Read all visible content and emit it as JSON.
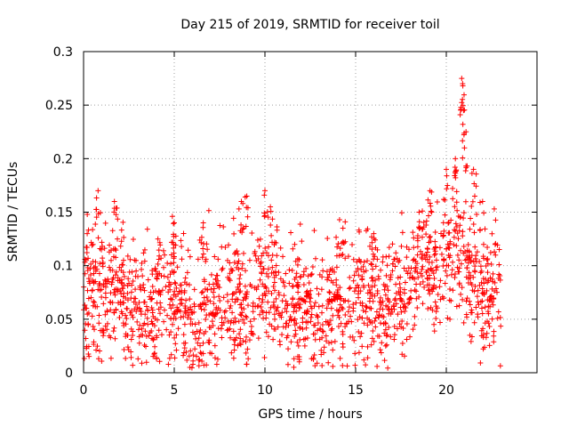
{
  "chart_data": {
    "type": "scatter",
    "title": "Day 215 of 2019, SRMTID for receiver toil",
    "xlabel": "GPS time / hours",
    "ylabel": "SRMTID / TECUs",
    "xlim": [
      0,
      25
    ],
    "ylim": [
      0,
      0.3
    ],
    "x_ticks": [
      0,
      5,
      10,
      15,
      20
    ],
    "x_tick_labels": [
      "0",
      "5",
      "10",
      "15",
      "20"
    ],
    "y_ticks": [
      0,
      0.05,
      0.1,
      0.15,
      0.2,
      0.25,
      0.3
    ],
    "y_tick_labels": [
      "0",
      "0.05",
      "0.1",
      "0.15",
      "0.2",
      "0.25",
      "0.3"
    ],
    "grid": true,
    "marker": "+",
    "series": [
      {
        "name": "SRMTID",
        "color": "#ff0000",
        "x_range": [
          0,
          23
        ],
        "baseline": [
          [
            0,
            0.07
          ],
          [
            0.5,
            0.08
          ],
          [
            1,
            0.075
          ],
          [
            1.5,
            0.085
          ],
          [
            2,
            0.085
          ],
          [
            2.5,
            0.065
          ],
          [
            3,
            0.06
          ],
          [
            3.5,
            0.055
          ],
          [
            4,
            0.06
          ],
          [
            4.5,
            0.065
          ],
          [
            5,
            0.07
          ],
          [
            5.5,
            0.06
          ],
          [
            6,
            0.05
          ],
          [
            6.5,
            0.055
          ],
          [
            7,
            0.065
          ],
          [
            7.5,
            0.065
          ],
          [
            8,
            0.07
          ],
          [
            8.5,
            0.07
          ],
          [
            9,
            0.065
          ],
          [
            9.5,
            0.075
          ],
          [
            10,
            0.09
          ],
          [
            10.5,
            0.075
          ],
          [
            11,
            0.065
          ],
          [
            11.5,
            0.06
          ],
          [
            12,
            0.065
          ],
          [
            12.5,
            0.06
          ],
          [
            13,
            0.055
          ],
          [
            13.5,
            0.065
          ],
          [
            14,
            0.07
          ],
          [
            14.5,
            0.065
          ],
          [
            15,
            0.07
          ],
          [
            15.5,
            0.075
          ],
          [
            16,
            0.065
          ],
          [
            16.5,
            0.06
          ],
          [
            17,
            0.07
          ],
          [
            17.5,
            0.075
          ],
          [
            18,
            0.08
          ],
          [
            18.5,
            0.1
          ],
          [
            19,
            0.1
          ],
          [
            19.5,
            0.1
          ],
          [
            20,
            0.11
          ],
          [
            20.5,
            0.13
          ],
          [
            21,
            0.11
          ],
          [
            21.5,
            0.09
          ],
          [
            22,
            0.08
          ],
          [
            22.5,
            0.075
          ],
          [
            23,
            0.08
          ]
        ],
        "peaks": [
          [
            0.2,
            0.13
          ],
          [
            0.8,
            0.17
          ],
          [
            1.7,
            0.16
          ],
          [
            4.1,
            0.125
          ],
          [
            5.0,
            0.14
          ],
          [
            6.6,
            0.14
          ],
          [
            8.7,
            0.16
          ],
          [
            9.0,
            0.165
          ],
          [
            10.0,
            0.17
          ],
          [
            10.3,
            0.155
          ],
          [
            14.3,
            0.135
          ],
          [
            16.0,
            0.13
          ],
          [
            18.5,
            0.15
          ],
          [
            19.1,
            0.17
          ],
          [
            20.0,
            0.19
          ],
          [
            20.5,
            0.2
          ],
          [
            20.85,
            0.275
          ],
          [
            20.9,
            0.27
          ],
          [
            20.95,
            0.245
          ],
          [
            21.0,
            0.21
          ],
          [
            21.5,
            0.19
          ],
          [
            22.0,
            0.16
          ]
        ],
        "lows": [
          [
            0.15,
            0.023
          ],
          [
            6.4,
            0.012
          ],
          [
            6.6,
            0.018
          ],
          [
            9.0,
            0.008
          ],
          [
            12.2,
            0.025
          ],
          [
            13.1,
            0.017
          ],
          [
            21.3,
            0.035
          ],
          [
            22.2,
            0.033
          ]
        ]
      }
    ]
  }
}
